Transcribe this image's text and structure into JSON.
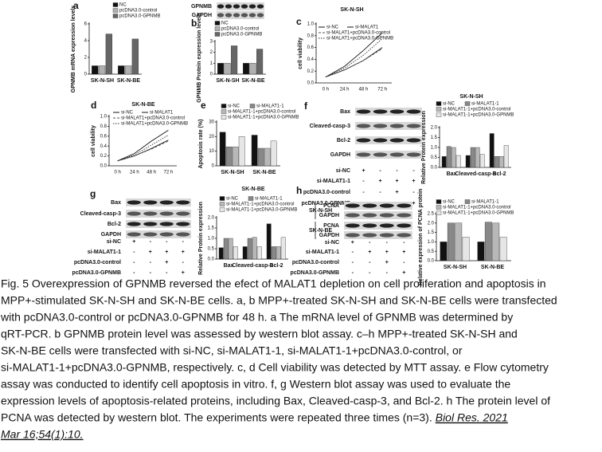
{
  "chart_data": [
    {
      "panel": "a",
      "type": "bar",
      "ylabel": "GPNMB mRNA expression levels",
      "categories": [
        "SK-N-SH",
        "SK-N-BE"
      ],
      "series": [
        {
          "name": "NC",
          "color": "#111111",
          "values": [
            1,
            1
          ]
        },
        {
          "name": "pcDNA3.0-control",
          "color": "#b0b0b0",
          "values": [
            1,
            1
          ]
        },
        {
          "name": "pcDNA3.0-GPNMB",
          "color": "#666666",
          "values": [
            4.8,
            4.2
          ]
        }
      ],
      "ylim": [
        0,
        6
      ],
      "yticks": [
        0,
        2,
        4,
        6
      ]
    },
    {
      "panel": "b",
      "type": "bar",
      "ylabel": "GPNMB Protein expression levels",
      "categories": [
        "SK-N-SH",
        "SK-N-BE"
      ],
      "series": [
        {
          "name": "NC",
          "color": "#111111",
          "values": [
            1,
            1
          ]
        },
        {
          "name": "pcDNA3.0-control",
          "color": "#b0b0b0",
          "values": [
            1,
            1
          ]
        },
        {
          "name": "pcDNA3.0-GPNMB",
          "color": "#666666",
          "values": [
            2.6,
            2.3
          ]
        }
      ],
      "ylim": [
        0,
        3
      ],
      "yticks": [
        0,
        1,
        2,
        3
      ]
    },
    {
      "panel": "c",
      "type": "line",
      "title": "SK-N-SH",
      "ylabel": "cell viability",
      "categories": [
        "0 h",
        "24 h",
        "48 h",
        "72 h"
      ],
      "series": [
        {
          "name": "si-NC",
          "color": "#111111",
          "values": [
            0.1,
            0.28,
            0.55,
            0.85
          ]
        },
        {
          "name": "si-MALAT1",
          "color": "#111111",
          "values": [
            0.1,
            0.22,
            0.38,
            0.6
          ]
        },
        {
          "name": "si-MALAT1+pcDNA3.0-control",
          "color": "#555555",
          "values": [
            0.1,
            0.22,
            0.38,
            0.58
          ]
        },
        {
          "name": "si-MALAT1+pcDNA3.0-GPNMB",
          "color": "#333333",
          "values": [
            0.1,
            0.25,
            0.47,
            0.75
          ]
        }
      ],
      "ylim": [
        0,
        1
      ],
      "yticks": [
        {
          "value": 0,
          "label": "0.0"
        },
        {
          "value": 0.2,
          "label": "0.2"
        },
        {
          "value": 0.4,
          "label": "0.4"
        },
        {
          "value": 0.6,
          "label": "0.6"
        },
        {
          "value": 0.8,
          "label": "0.8"
        },
        {
          "value": 1,
          "label": "1.0"
        }
      ]
    },
    {
      "panel": "d",
      "type": "line",
      "title": "SK-N-BE",
      "ylabel": "cell viability",
      "categories": [
        "0 h",
        "24 h",
        "48 h",
        "72 h"
      ],
      "series": [
        {
          "name": "si-NC",
          "color": "#111111",
          "values": [
            0.1,
            0.25,
            0.5,
            0.72
          ]
        },
        {
          "name": "si-MALAT1",
          "color": "#111111",
          "values": [
            0.1,
            0.2,
            0.35,
            0.52
          ]
        },
        {
          "name": "si-MALAT1+pcDNA3.0-control",
          "color": "#555555",
          "values": [
            0.1,
            0.2,
            0.34,
            0.5
          ]
        },
        {
          "name": "si-MALAT1+pcDNA3.0-GPNMB",
          "color": "#333333",
          "values": [
            0.1,
            0.22,
            0.42,
            0.62
          ]
        }
      ],
      "ylim": [
        0,
        1
      ],
      "yticks": [
        {
          "value": 0,
          "label": "0.0"
        },
        {
          "value": 0.2,
          "label": "0.2"
        },
        {
          "value": 0.4,
          "label": "0.4"
        },
        {
          "value": 0.6,
          "label": "0.6"
        },
        {
          "value": 0.8,
          "label": "0.8"
        },
        {
          "value": 1,
          "label": "1.0"
        }
      ]
    },
    {
      "panel": "e",
      "type": "bar",
      "ylabel": "Apoptosis rate (%)",
      "categories": [
        "SK-N-SH",
        "SK-N-BE"
      ],
      "series": [
        {
          "name": "si-NC",
          "color": "#111111",
          "values": [
            23,
            21
          ]
        },
        {
          "name": "si-MALAT1-1",
          "color": "#888888",
          "values": [
            13,
            12
          ]
        },
        {
          "name": "si-MALAT1-1+pcDNA3.0-control",
          "color": "#b8b8b8",
          "values": [
            13,
            12
          ]
        },
        {
          "name": "si-MALAT1-1+pcDNA3.0-GPNMB",
          "color": "#e6e6e6",
          "values": [
            20,
            17
          ]
        }
      ],
      "ylim": [
        0,
        30
      ],
      "yticks": [
        0,
        10,
        20,
        30
      ]
    },
    {
      "type": "bar",
      "title": "SK-N-SH",
      "ylabel": "Relative Protein expression",
      "categories": [
        "Bax",
        "Cleaved-casp-3",
        "Bcl-2"
      ],
      "series": [
        {
          "name": "si-NC",
          "color": "#111111",
          "values": [
            0.55,
            0.6,
            1.7
          ]
        },
        {
          "name": "si-MALAT1-1",
          "color": "#888888",
          "values": [
            1.05,
            1.0,
            0.55
          ]
        },
        {
          "name": "si-MALAT1-1+pcDNA3.0-control",
          "color": "#b8b8b8",
          "values": [
            1.0,
            1.0,
            0.55
          ]
        },
        {
          "name": "si-MALAT1-1+pcDNA3.0-GPNMB",
          "color": "#e6e6e6",
          "values": [
            0.6,
            0.65,
            1.1
          ]
        }
      ],
      "ylim": [
        0,
        2
      ],
      "yticks": [
        {
          "value": 0,
          "label": "0.0"
        },
        {
          "value": 0.5,
          "label": "0.5"
        },
        {
          "value": 1,
          "label": "1.0"
        },
        {
          "value": 1.5,
          "label": "1.5"
        },
        {
          "value": 2,
          "label": "2.0"
        }
      ]
    },
    {
      "type": "bar",
      "title": "SK-N-BE",
      "ylabel": "Relative Protein expression",
      "categories": [
        "Bax",
        "Cleaved-casp-3",
        "Bcl-2"
      ],
      "series": [
        {
          "name": "si-NC",
          "color": "#111111",
          "values": [
            0.55,
            0.6,
            1.7
          ]
        },
        {
          "name": "si-MALAT1-1",
          "color": "#888888",
          "values": [
            1.0,
            1.0,
            0.6
          ]
        },
        {
          "name": "si-MALAT1-1+pcDNA3.0-control",
          "color": "#b8b8b8",
          "values": [
            1.0,
            1.05,
            0.6
          ]
        },
        {
          "name": "si-MALAT1-1+pcDNA3.0-GPNMB",
          "color": "#e6e6e6",
          "values": [
            0.6,
            0.6,
            1.05
          ]
        }
      ],
      "ylim": [
        0,
        2
      ],
      "yticks": [
        {
          "value": 0,
          "label": "0.0"
        },
        {
          "value": 0.5,
          "label": "0.5"
        },
        {
          "value": 1,
          "label": "1.0"
        },
        {
          "value": 1.5,
          "label": "1.5"
        },
        {
          "value": 2,
          "label": "2.0"
        }
      ]
    },
    {
      "type": "bar",
      "ylabel": "Relative expression of PCNA protein",
      "categories": [
        "SK-N-SH",
        "SK-N-BE"
      ],
      "series": [
        {
          "name": "si-NC",
          "color": "#111111",
          "values": [
            1.0,
            1.0
          ]
        },
        {
          "name": "si-MALAT1-1",
          "color": "#888888",
          "values": [
            2.0,
            2.05
          ]
        },
        {
          "name": "si-MALAT1-1+pcDNA3.0-control",
          "color": "#b8b8b8",
          "values": [
            2.0,
            2.0
          ]
        },
        {
          "name": "si-MALAT1-1+pcDNA3.0-GPNMB",
          "color": "#e6e6e6",
          "values": [
            1.25,
            1.25
          ]
        }
      ],
      "ylim": [
        0,
        2.5
      ],
      "yticks": [
        {
          "value": 0,
          "label": "0.0"
        },
        {
          "value": 0.5,
          "label": "0.5"
        },
        {
          "value": 1,
          "label": "1.0"
        },
        {
          "value": 1.5,
          "label": "1.5"
        },
        {
          "value": 2,
          "label": "2.0"
        },
        {
          "value": 2.5,
          "label": "2.5"
        }
      ]
    }
  ],
  "blots": [
    {
      "bands": [
        "GPNMB",
        "GAPDH"
      ]
    },
    {
      "panel": "f",
      "bands": [
        "Bax",
        "Cleaved-casp-3",
        "Bcl-2",
        "GAPDH"
      ],
      "conditions": [
        {
          "name": "si-NC",
          "signs": [
            "+",
            "-",
            "-",
            "-"
          ]
        },
        {
          "name": "si-MALAT1-1",
          "signs": [
            "-",
            "+",
            "+",
            "+"
          ]
        },
        {
          "name": "pcDNA3.0-control",
          "signs": [
            "-",
            "-",
            "+",
            "-"
          ]
        },
        {
          "name": "pcDNA3.0-GPNMB",
          "signs": [
            "-",
            "-",
            "-",
            "+"
          ]
        }
      ]
    },
    {
      "panel": "g",
      "bands": [
        "Bax",
        "Cleaved-casp-3",
        "Bcl-2",
        "GAPDH"
      ],
      "conditions": [
        {
          "name": "si-NC",
          "signs": [
            "+",
            "-",
            "-",
            "-"
          ]
        },
        {
          "name": "si-MALAT1-1",
          "signs": [
            "-",
            "+",
            "+",
            "+"
          ]
        },
        {
          "name": "pcDNA3.0-control",
          "signs": [
            "-",
            "-",
            "+",
            "-"
          ]
        },
        {
          "name": "pcDNA3.0-GPNMB",
          "signs": [
            "-",
            "-",
            "-",
            "+"
          ]
        }
      ]
    },
    {
      "panel": "h",
      "groups": [
        {
          "name": "SK-N-SH",
          "bands": [
            "PCNA",
            "GAPDH"
          ]
        },
        {
          "name": "SK-N-BE",
          "bands": [
            "PCNA",
            "GAPDH"
          ]
        }
      ],
      "conditions": [
        {
          "name": "si-NC",
          "signs": [
            "+",
            "-",
            "-",
            "-"
          ]
        },
        {
          "name": "si-MALAT1-1",
          "signs": [
            "-",
            "+",
            "+",
            "+"
          ]
        },
        {
          "name": "pcDNA3.0-control",
          "signs": [
            "-",
            "-",
            "+",
            "-"
          ]
        },
        {
          "name": "pcDNA3.0-GPNMB",
          "signs": [
            "-",
            "-",
            "-",
            "+"
          ]
        }
      ]
    }
  ],
  "caption": {
    "lines": [
      "Fig. 5 Overexpression of GPNMB reversed the efect of MALAT1 depletion on cell proliferation and apoptosis in",
      "MPP+-stimulated SK-N-SH and SK-N-BE cells. a, b MPP+-treated SK-N-SH and SK-N-BE cells were transfected",
      "with pcDNA3.0-control or pcDNA3.0-GPNMB for 48 h. a The mRNA level of GPNMB was determined by",
      "qRT-PCR. b GPNMB protein level was assessed by western blot assay. c–h MPP+-treated SK-N-SH and",
      "SK-N-BE cells were transfected with si-NC, si-MALAT1-1, si-MALAT1-1+pcDNA3.0-control, or",
      "si-MALAT1-1+pcDNA3.0-GPNMB, respectively. c, d Cell viability was detected by MTT assay. e Flow cytometry",
      "assay was conducted to identify cell apoptosis in vitro. f, g Western blot assay was used to evaluate the",
      "expression levels of apoptosis-related proteins, including Bax, Cleaved-casp-3, and Bcl-2. h The protein level of",
      "PCNA was detected by western blot. The experiments were repeated three times (n=3)."
    ],
    "citation": [
      "Biol Res. 2021",
      "Mar 16;54(1):10."
    ]
  }
}
